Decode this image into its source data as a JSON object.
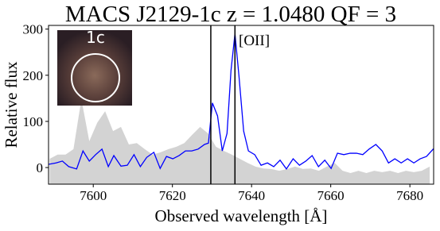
{
  "chart_data": {
    "type": "line",
    "title": "MACS J2129-1c z = 1.0480 QF = 3",
    "xlabel": "Observed wavelength  [Å]",
    "ylabel": "Relative flux",
    "annotation": "[OII]",
    "inset_label": "1c",
    "xlim": [
      7588.7,
      7686
    ],
    "ylim": [
      -36,
      308
    ],
    "xticks": [
      7600,
      7620,
      7640,
      7660,
      7680
    ],
    "yticks": [
      0,
      100,
      200,
      300
    ],
    "vlines": [
      7629.7,
      7635.8
    ],
    "vline_color": "#000000",
    "series": [
      {
        "kind": "area",
        "color": "#d3d3d3",
        "x": [
          7589,
          7591,
          7593,
          7595,
          7597,
          7599,
          7601,
          7603,
          7605,
          7607,
          7609,
          7611,
          7613,
          7615,
          7617,
          7619,
          7621,
          7623,
          7625,
          7627,
          7629,
          7631,
          7633,
          7635,
          7637,
          7639,
          7641,
          7643,
          7645,
          7647,
          7649,
          7651,
          7653,
          7655,
          7657,
          7659,
          7661,
          7663,
          7665,
          7667,
          7669,
          7671,
          7673,
          7675,
          7677,
          7679,
          7681,
          7683,
          7685
        ],
        "values": [
          19,
          28,
          28,
          40,
          148,
          57,
          97,
          122,
          79,
          88,
          50,
          53,
          40,
          28,
          33,
          40,
          45,
          53,
          71,
          88,
          74,
          45,
          36,
          28,
          19,
          10,
          2,
          -2,
          -3,
          -7,
          -3,
          2,
          -3,
          -2,
          -7,
          2,
          10,
          -7,
          -12,
          -7,
          -12,
          -7,
          -10,
          -7,
          -12,
          -7,
          -10,
          -7,
          2
        ]
      },
      {
        "kind": "line",
        "color": "#0000ff",
        "x": [
          7588.7,
          7590.6,
          7592.2,
          7593.8,
          7595.8,
          7597.4,
          7599.0,
          7600.6,
          7602.2,
          7603.8,
          7605.2,
          7607.0,
          7608.6,
          7610.3,
          7611.9,
          7613.5,
          7615.3,
          7616.9,
          7618.5,
          7620.1,
          7621.7,
          7623.3,
          7624.9,
          7626.5,
          7628.1,
          7629.1,
          7630.1,
          7631.4,
          7632.6,
          7633.8,
          7634.8,
          7635.8,
          7636.8,
          7638.0,
          7639.2,
          7640.8,
          7642.4,
          7644.0,
          7645.6,
          7647.2,
          7648.8,
          7650.5,
          7652.1,
          7653.7,
          7655.3,
          7656.9,
          7658.5,
          7660.1,
          7661.7,
          7663.3,
          7664.9,
          7666.5,
          7668.1,
          7669.7,
          7671.4,
          7673.0,
          7674.6,
          7676.2,
          7677.8,
          7679.4,
          7681.0,
          7682.6,
          7684.2,
          7686.0
        ],
        "values": [
          7,
          10,
          14,
          2,
          -3,
          36,
          14,
          28,
          40,
          2,
          26,
          3,
          5,
          28,
          2,
          22,
          33,
          -2,
          24,
          19,
          26,
          36,
          36,
          40,
          50,
          53,
          140,
          112,
          36,
          74,
          210,
          290,
          200,
          79,
          36,
          28,
          5,
          10,
          2,
          16,
          -3,
          19,
          5,
          14,
          26,
          2,
          16,
          -2,
          31,
          28,
          31,
          31,
          28,
          40,
          50,
          36,
          10,
          19,
          10,
          19,
          10,
          19,
          24,
          41
        ]
      }
    ]
  }
}
